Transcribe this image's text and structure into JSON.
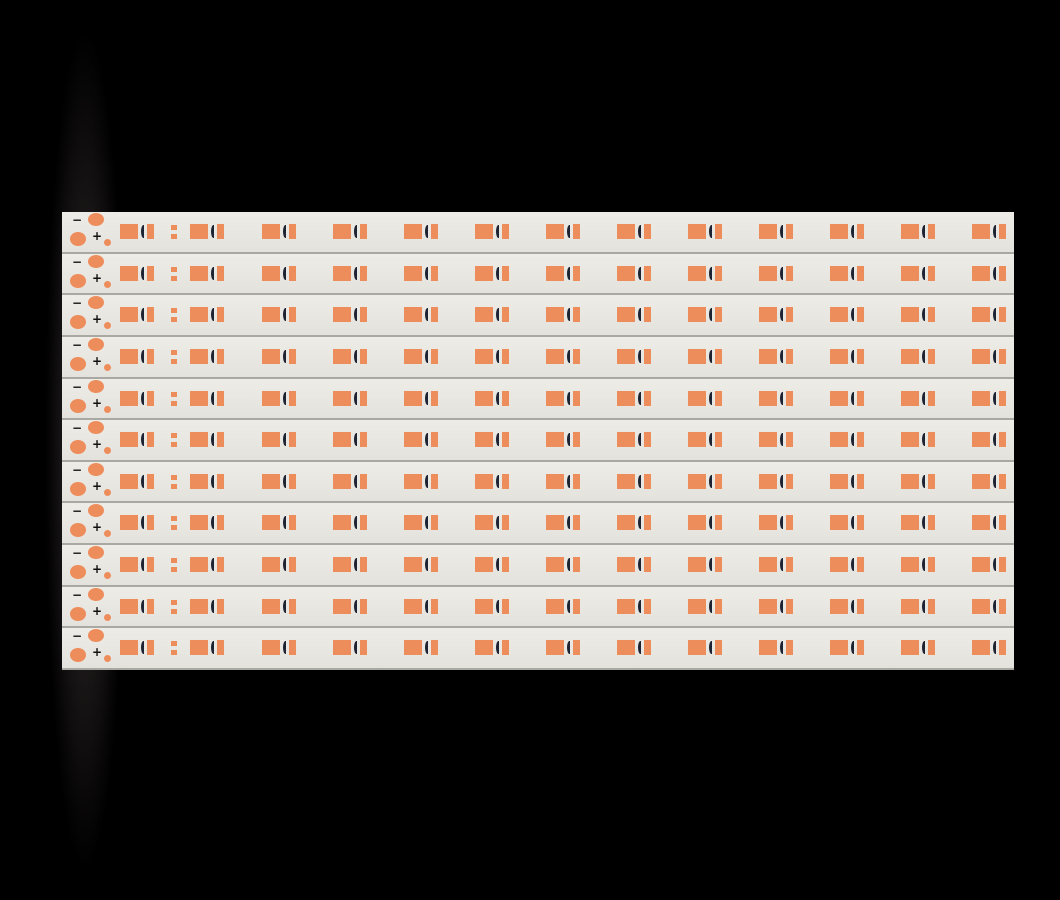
{
  "strips": 11,
  "leds_per_strip": 13,
  "labels": {
    "minus": "−",
    "plus": "+"
  },
  "colors": {
    "background": "#000000",
    "pcb": "#e8e6e0",
    "pad": "#ee8d5c",
    "component": "#1e2333"
  }
}
